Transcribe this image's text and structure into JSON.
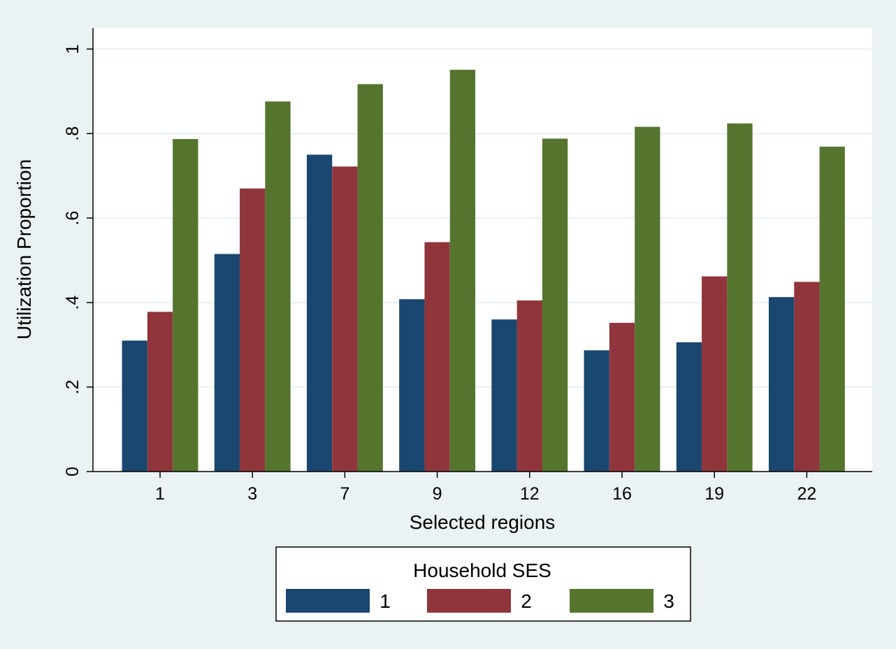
{
  "chart_data": {
    "type": "bar",
    "title": "",
    "xlabel": "Selected regions",
    "ylabel": "Utilization Proportion",
    "ylim": [
      0,
      1.05
    ],
    "yticks": [
      0,
      0.2,
      0.4,
      0.6,
      0.8,
      1
    ],
    "ytick_labels": [
      "0",
      ".2",
      ".4",
      ".6",
      ".8",
      "1"
    ],
    "categories": [
      "1",
      "3",
      "7",
      "9",
      "12",
      "16",
      "19",
      "22"
    ],
    "grid": true,
    "legend": {
      "title": "Household SES",
      "position": "bottom"
    },
    "series": [
      {
        "name": "1",
        "color": "#1a476f",
        "values": [
          0.31,
          0.515,
          0.75,
          0.408,
          0.36,
          0.287,
          0.306,
          0.413
        ]
      },
      {
        "name": "2",
        "color": "#90353b",
        "values": [
          0.378,
          0.67,
          0.722,
          0.543,
          0.405,
          0.352,
          0.462,
          0.449
        ]
      },
      {
        "name": "3",
        "color": "#55752f",
        "values": [
          0.787,
          0.876,
          0.917,
          0.951,
          0.788,
          0.816,
          0.824,
          0.769
        ]
      }
    ]
  }
}
